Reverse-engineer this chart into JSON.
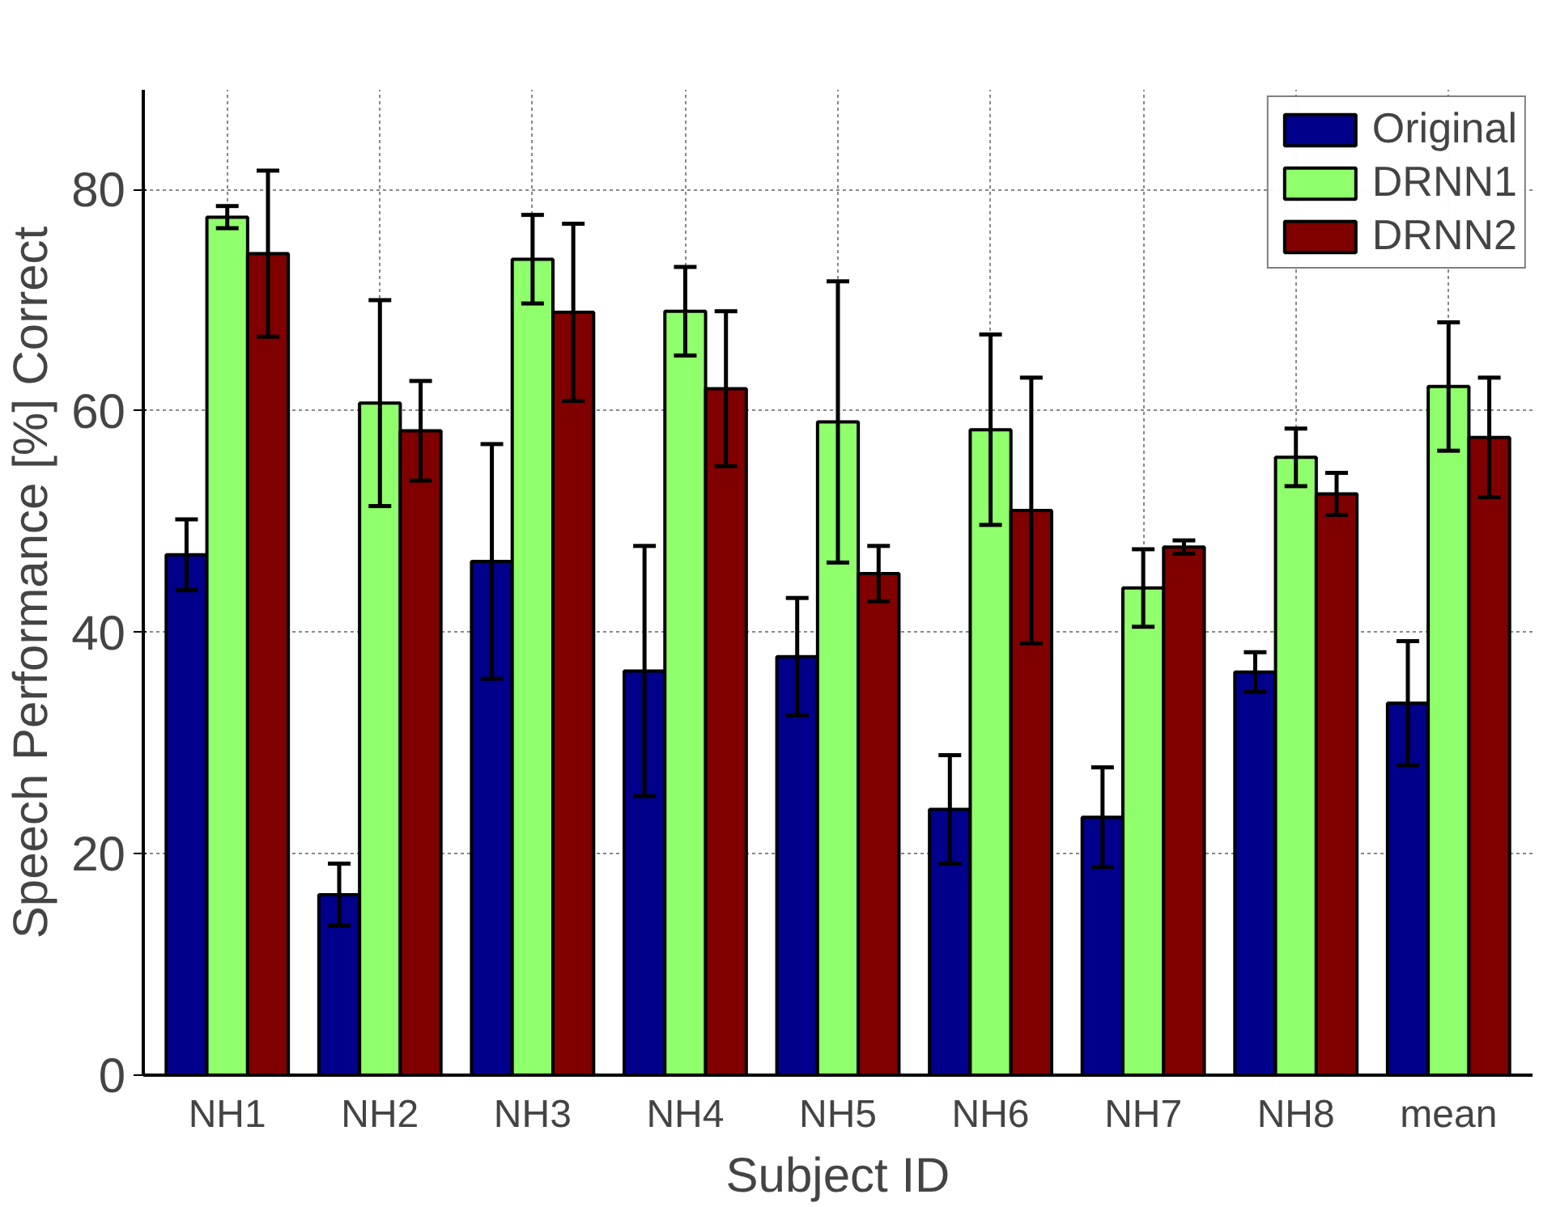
{
  "chart_data": {
    "type": "bar",
    "xlabel": "Subject ID",
    "ylabel": "Speech Performance [%] Correct",
    "categories": [
      "NH1",
      "NH2",
      "NH3",
      "NH4",
      "NH5",
      "NH6",
      "NH7",
      "NH8",
      "mean"
    ],
    "series": [
      {
        "name": "Original",
        "color": "#00008b",
        "values": [
          47.0,
          16.3,
          46.4,
          36.5,
          37.8,
          24.0,
          23.3,
          36.4,
          33.6
        ],
        "errors": [
          3.2,
          2.8,
          10.6,
          11.3,
          5.3,
          4.9,
          4.5,
          1.8,
          5.6
        ]
      },
      {
        "name": "DRNN1",
        "color": "#90ff6c",
        "values": [
          77.5,
          60.7,
          73.7,
          69.0,
          59.0,
          58.3,
          44.0,
          55.8,
          62.2
        ],
        "errors": [
          1.0,
          9.3,
          4.0,
          4.0,
          12.7,
          8.6,
          3.5,
          2.6,
          5.8
        ]
      },
      {
        "name": "DRNN2",
        "color": "#800000",
        "values": [
          74.2,
          58.2,
          68.9,
          62.0,
          45.3,
          51.0,
          47.7,
          52.5,
          57.6
        ],
        "errors": [
          7.5,
          4.5,
          8.0,
          7.0,
          2.5,
          12.0,
          0.6,
          1.9,
          5.4
        ]
      }
    ],
    "ylim": [
      0,
      89
    ],
    "yticks": [
      0,
      20,
      40,
      60,
      80
    ],
    "grid": true,
    "legend": "top right"
  }
}
